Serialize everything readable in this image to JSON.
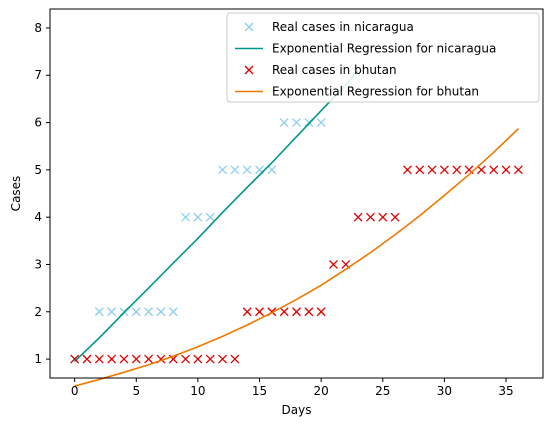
{
  "chart_data": {
    "type": "line",
    "title": "",
    "xlabel": "Days",
    "ylabel": "Cases",
    "xlim": [
      -2,
      38
    ],
    "ylim": [
      0.6,
      8.4
    ],
    "xticks": [
      0,
      5,
      10,
      15,
      20,
      25,
      30,
      35
    ],
    "yticks": [
      1,
      2,
      3,
      4,
      5,
      6,
      7,
      8
    ],
    "grid": false,
    "legend_position": "top-right",
    "series": [
      {
        "name": "Real cases in nicaragua",
        "kind": "scatter",
        "marker": "x",
        "color": "#8ecdf1",
        "points": [
          [
            0,
            1
          ],
          [
            1,
            1
          ],
          [
            2,
            2
          ],
          [
            3,
            2
          ],
          [
            4,
            2
          ],
          [
            5,
            2
          ],
          [
            6,
            2
          ],
          [
            7,
            2
          ],
          [
            8,
            2
          ],
          [
            9,
            4
          ],
          [
            10,
            4
          ],
          [
            11,
            4
          ],
          [
            12,
            5
          ],
          [
            13,
            5
          ],
          [
            14,
            5
          ],
          [
            15,
            5
          ],
          [
            16,
            5
          ],
          [
            17,
            6
          ],
          [
            18,
            6
          ],
          [
            19,
            6
          ],
          [
            20,
            6
          ]
        ]
      },
      {
        "name": "Exponential Regression for nicaragua",
        "kind": "line",
        "color": "#009688",
        "points": [
          [
            0,
            0.95
          ],
          [
            2,
            1.45
          ],
          [
            4,
            1.98
          ],
          [
            6,
            2.5
          ],
          [
            8,
            3.03
          ],
          [
            10,
            3.55
          ],
          [
            12,
            4.1
          ],
          [
            14,
            4.63
          ],
          [
            16,
            5.15
          ],
          [
            18,
            5.7
          ],
          [
            20,
            6.25
          ],
          [
            22,
            6.8
          ],
          [
            23,
            7.1
          ]
        ]
      },
      {
        "name": "Real cases in bhutan",
        "kind": "scatter",
        "marker": "x",
        "color": "#dd0000",
        "points": [
          [
            0,
            1
          ],
          [
            1,
            1
          ],
          [
            2,
            1
          ],
          [
            3,
            1
          ],
          [
            4,
            1
          ],
          [
            5,
            1
          ],
          [
            6,
            1
          ],
          [
            7,
            1
          ],
          [
            8,
            1
          ],
          [
            9,
            1
          ],
          [
            10,
            1
          ],
          [
            11,
            1
          ],
          [
            12,
            1
          ],
          [
            13,
            1
          ],
          [
            14,
            2
          ],
          [
            15,
            2
          ],
          [
            16,
            2
          ],
          [
            17,
            2
          ],
          [
            18,
            2
          ],
          [
            19,
            2
          ],
          [
            20,
            2
          ],
          [
            21,
            3
          ],
          [
            22,
            3
          ],
          [
            23,
            4
          ],
          [
            24,
            4
          ],
          [
            25,
            4
          ],
          [
            26,
            4
          ],
          [
            27,
            5
          ],
          [
            28,
            5
          ],
          [
            29,
            5
          ],
          [
            30,
            5
          ],
          [
            31,
            5
          ],
          [
            32,
            5
          ],
          [
            33,
            5
          ],
          [
            34,
            5
          ],
          [
            35,
            5
          ],
          [
            36,
            5
          ]
        ]
      },
      {
        "name": "Exponential Regression for bhutan",
        "kind": "line",
        "color": "#f07800",
        "points": [
          [
            0,
            0.43
          ],
          [
            2,
            0.57
          ],
          [
            4,
            0.72
          ],
          [
            6,
            0.88
          ],
          [
            8,
            1.06
          ],
          [
            10,
            1.26
          ],
          [
            12,
            1.48
          ],
          [
            14,
            1.72
          ],
          [
            16,
            1.98
          ],
          [
            18,
            2.26
          ],
          [
            20,
            2.56
          ],
          [
            22,
            2.9
          ],
          [
            24,
            3.25
          ],
          [
            26,
            3.63
          ],
          [
            28,
            4.03
          ],
          [
            30,
            4.46
          ],
          [
            32,
            4.9
          ],
          [
            34,
            5.37
          ],
          [
            36,
            5.87
          ]
        ]
      }
    ]
  }
}
